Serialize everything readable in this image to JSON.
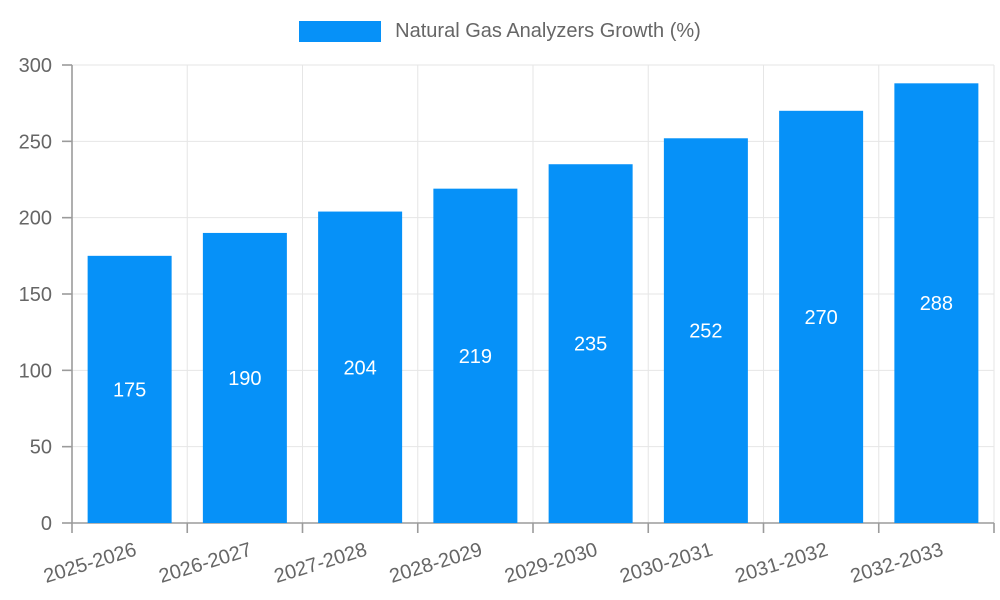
{
  "chart_data": {
    "type": "bar",
    "title": "Natural Gas Analyzers Growth (%)",
    "legend": {
      "label": "Natural Gas Analyzers Growth (%)",
      "position": "top"
    },
    "categories": [
      "2025-2026",
      "2026-2027",
      "2027-2028",
      "2028-2029",
      "2029-2030",
      "2030-2031",
      "2031-2032",
      "2032-2033"
    ],
    "values": [
      175,
      190,
      204,
      219,
      235,
      252,
      270,
      288
    ],
    "value_labels": [
      "175",
      "190",
      "204",
      "219",
      "235",
      "252",
      "270",
      "288"
    ],
    "xlabel": "",
    "ylabel": "",
    "ylim": [
      0,
      300
    ],
    "yticks": [
      0,
      50,
      100,
      150,
      200,
      250,
      300
    ],
    "grid": true,
    "x_label_rotation_deg": -17,
    "colors": {
      "bar": "#0691f8",
      "grid": "#e6e6e6",
      "axis": "#9b9b9b",
      "tick_text": "#666666",
      "value_label": "#ffffff",
      "background": "#ffffff"
    }
  }
}
